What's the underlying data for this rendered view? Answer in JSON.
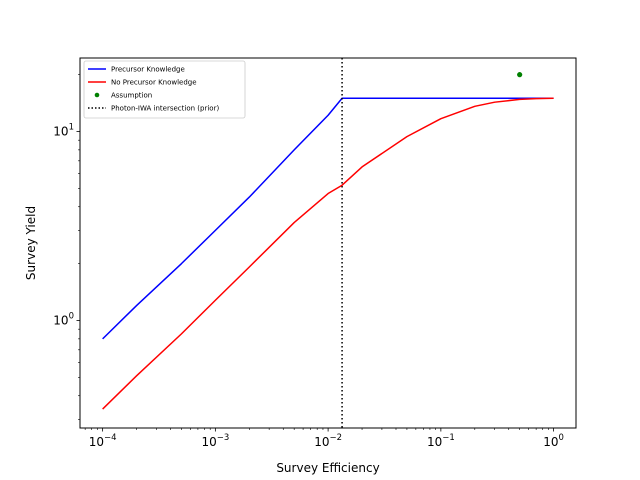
{
  "chart_data": {
    "type": "line",
    "title": "",
    "xlabel": "Survey Efficiency",
    "ylabel": "Survey Yield",
    "xscale": "log",
    "yscale": "log",
    "xlim": [
      6.3e-05,
      1.58
    ],
    "ylim": [
      0.27,
      24.5
    ],
    "xticks": [
      {
        "value": 0.0001,
        "base": "10",
        "exp": "−4"
      },
      {
        "value": 0.001,
        "base": "10",
        "exp": "−3"
      },
      {
        "value": 0.01,
        "base": "10",
        "exp": "−2"
      },
      {
        "value": 0.1,
        "base": "10",
        "exp": "−1"
      },
      {
        "value": 1,
        "base": "10",
        "exp": "0"
      }
    ],
    "yticks": [
      {
        "value": 1,
        "base": "10",
        "exp": "0"
      },
      {
        "value": 10,
        "base": "10",
        "exp": "1"
      }
    ],
    "grid": false,
    "legend_position": "upper-left",
    "series": [
      {
        "name": "Precursor Knowledge",
        "kind": "line",
        "color": "#0000ff",
        "x": [
          0.0001,
          0.0002,
          0.0005,
          0.001,
          0.002,
          0.005,
          0.01,
          0.0133,
          0.02,
          0.05,
          0.1,
          0.2,
          0.5,
          1.0
        ],
        "y": [
          0.8,
          1.2,
          2.0,
          3.0,
          4.5,
          8.0,
          12.2,
          15.0,
          15.0,
          15.0,
          15.0,
          15.0,
          15.0,
          15.0
        ]
      },
      {
        "name": "No Precursor Knowledge",
        "kind": "line",
        "color": "#ff0000",
        "x": [
          0.0001,
          0.0002,
          0.0005,
          0.001,
          0.002,
          0.005,
          0.01,
          0.0133,
          0.02,
          0.05,
          0.1,
          0.2,
          0.3,
          0.5,
          0.7,
          1.0
        ],
        "y": [
          0.34,
          0.51,
          0.85,
          1.28,
          1.92,
          3.3,
          4.7,
          5.2,
          6.5,
          9.4,
          11.7,
          13.6,
          14.3,
          14.8,
          14.93,
          15.0
        ]
      },
      {
        "name": "Assumption",
        "kind": "point",
        "color": "#008000",
        "x": [
          0.5
        ],
        "y": [
          20.0
        ]
      }
    ],
    "vlines": [
      {
        "name": "Photon-IWA intersection (prior)",
        "x": 0.0133,
        "style": "dotted",
        "color": "#000000"
      }
    ]
  }
}
